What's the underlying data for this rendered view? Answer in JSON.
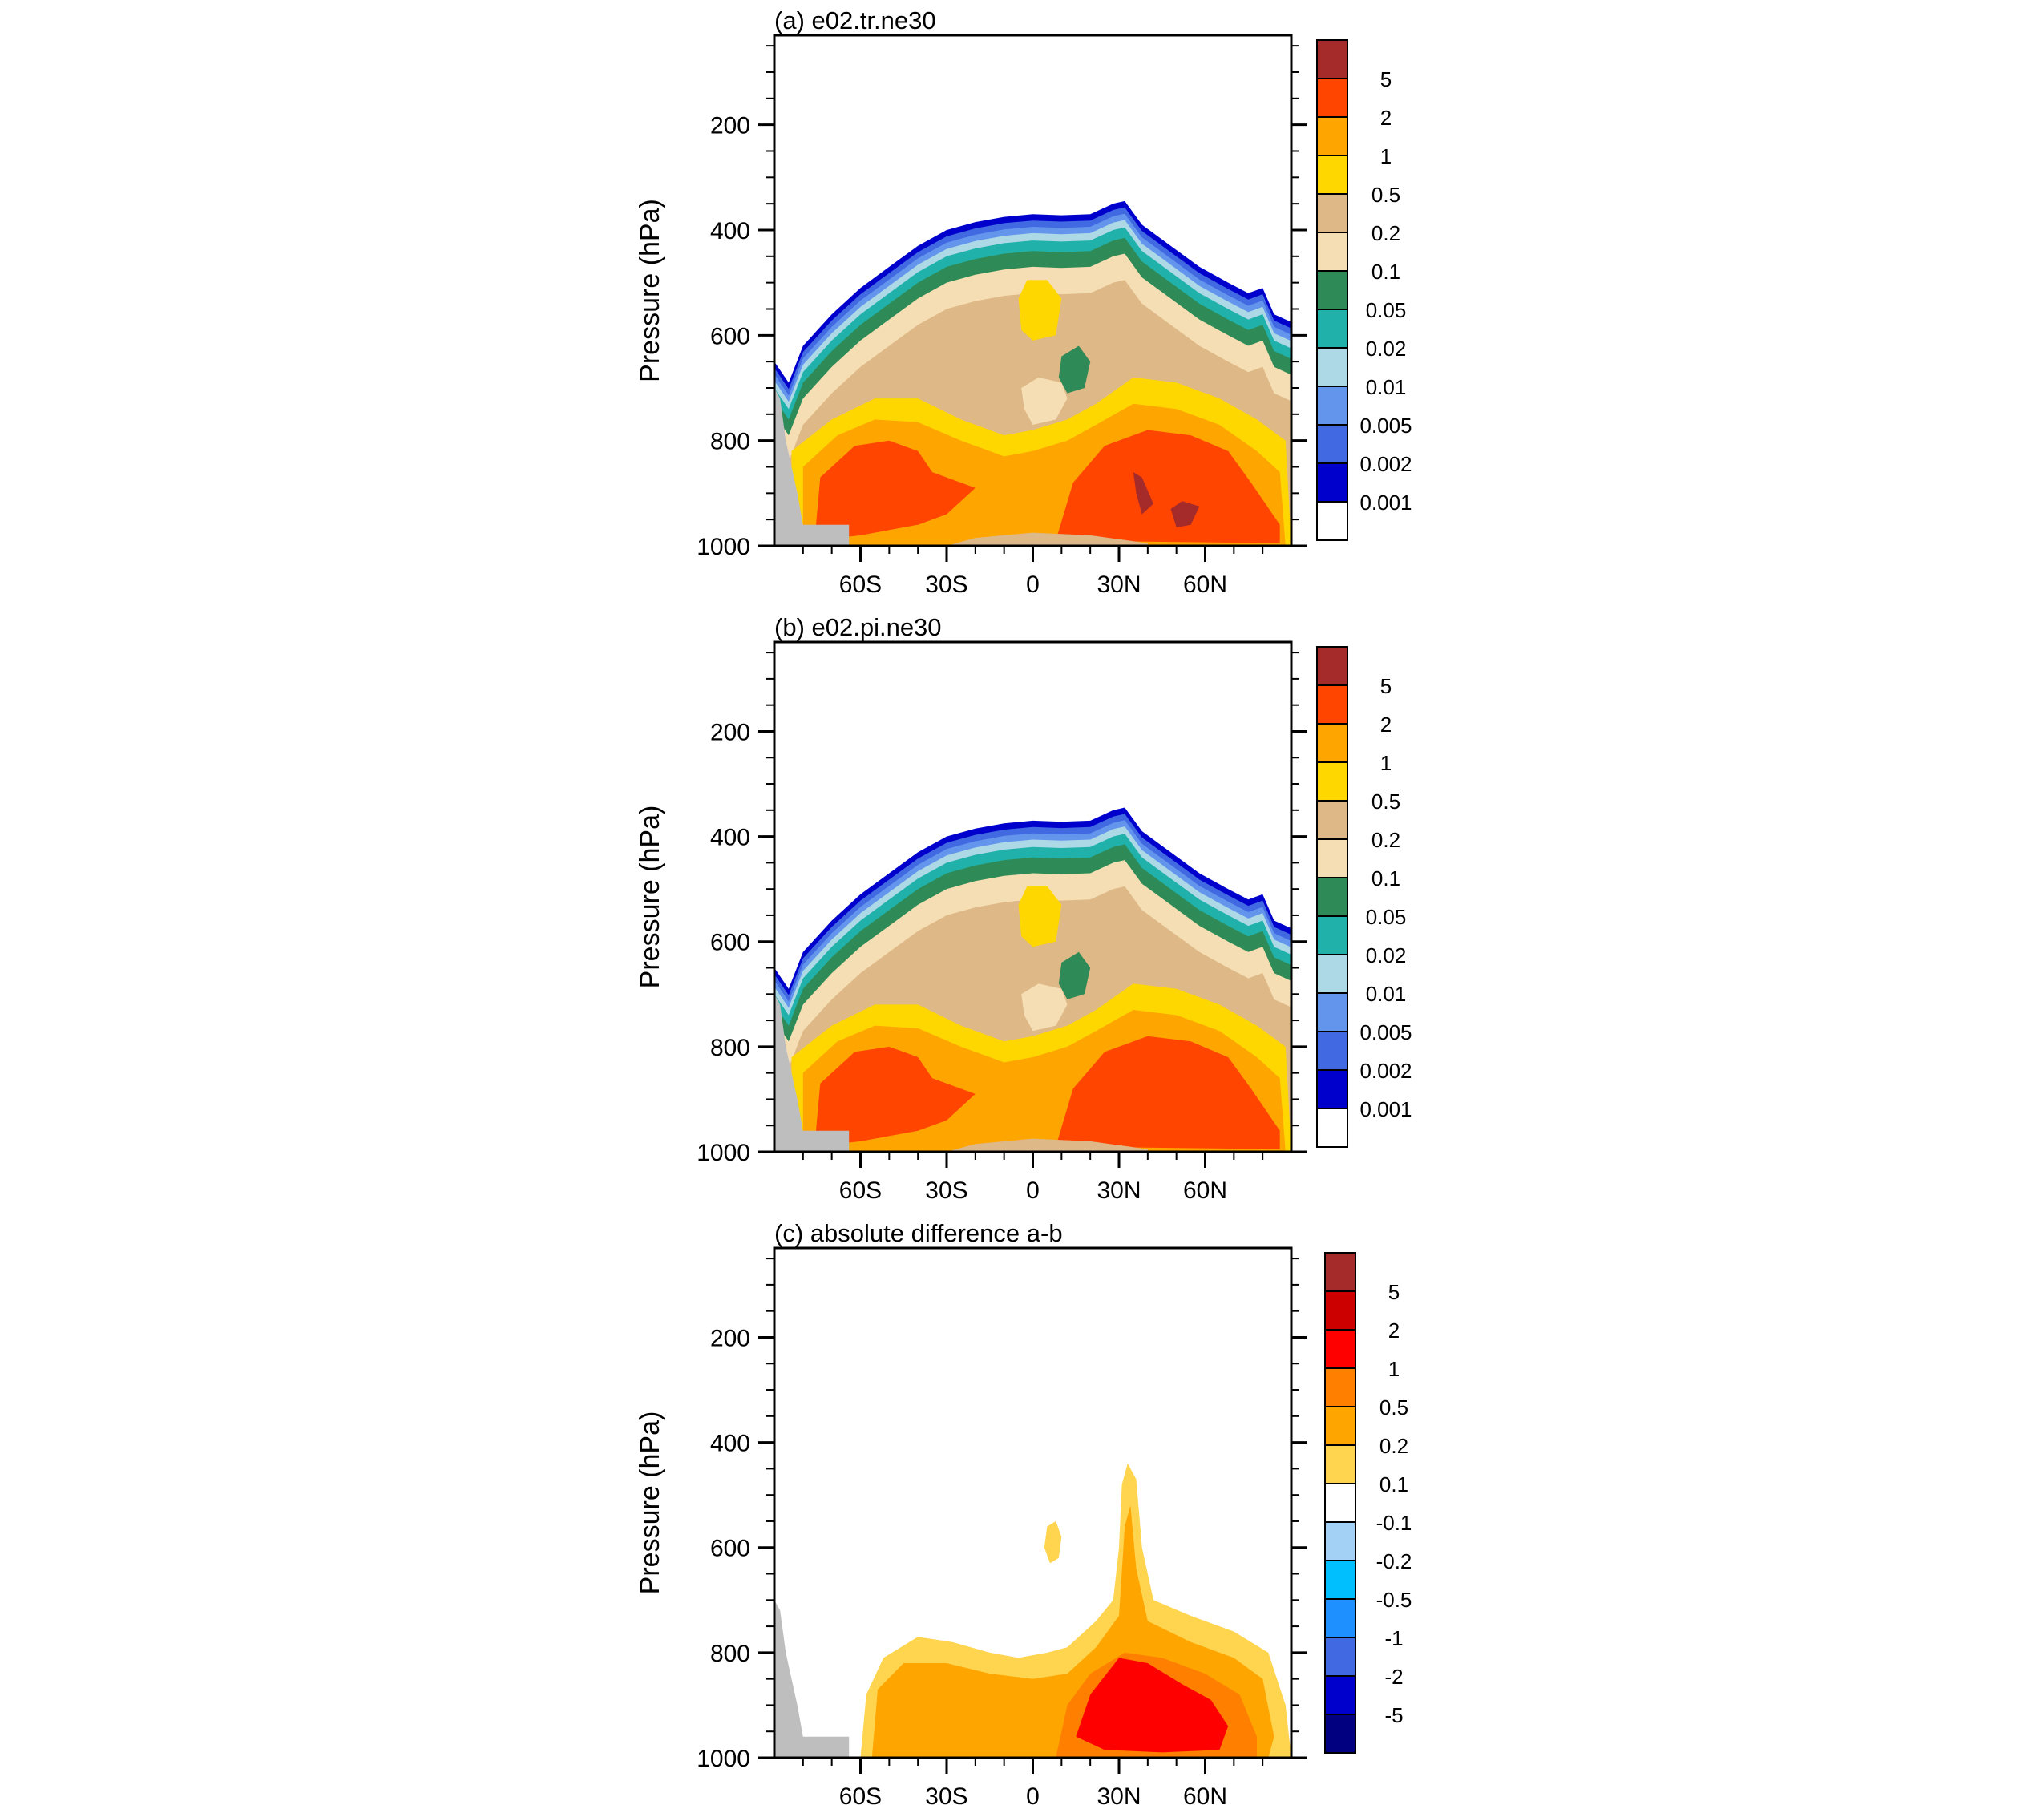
{
  "page": {
    "background": "#ffffff"
  },
  "chart_data": [
    {
      "type": "contour",
      "title": "(a) e02.tr.ne30",
      "ylabel": "Pressure (hPa)",
      "yticks": [
        "200",
        "400",
        "600",
        "800",
        "1000"
      ],
      "xticks": [
        "60S",
        "30S",
        "0",
        "30N",
        "60N"
      ],
      "xlim": [
        -90,
        90
      ],
      "ylim": [
        1000,
        30
      ],
      "colorbar": {
        "labels": [
          "5",
          "2",
          "1",
          "0.5",
          "0.2",
          "0.1",
          "0.05",
          "0.02",
          "0.01",
          "0.005",
          "0.002",
          "0.001"
        ],
        "colors": [
          "#a52a2a",
          "#ff4500",
          "#ffa500",
          "#ffd700",
          "#deb887",
          "#f5deb3",
          "#2e8b57",
          "#20b2aa",
          "#add8e6",
          "#6495ed",
          "#4169e1",
          "#0000cd",
          "#ffffff"
        ]
      }
    },
    {
      "type": "contour",
      "title": "(b) e02.pi.ne30",
      "ylabel": "Pressure (hPa)",
      "yticks": [
        "200",
        "400",
        "600",
        "800",
        "1000"
      ],
      "xticks": [
        "60S",
        "30S",
        "0",
        "30N",
        "60N"
      ],
      "xlim": [
        -90,
        90
      ],
      "ylim": [
        1000,
        30
      ],
      "colorbar": {
        "labels": [
          "5",
          "2",
          "1",
          "0.5",
          "0.2",
          "0.1",
          "0.05",
          "0.02",
          "0.01",
          "0.005",
          "0.002",
          "0.001"
        ],
        "colors": [
          "#a52a2a",
          "#ff4500",
          "#ffa500",
          "#ffd700",
          "#deb887",
          "#f5deb3",
          "#2e8b57",
          "#20b2aa",
          "#add8e6",
          "#6495ed",
          "#4169e1",
          "#0000cd",
          "#ffffff"
        ]
      }
    },
    {
      "type": "contour",
      "title": "(c) absolute difference a-b",
      "ylabel": "Pressure (hPa)",
      "yticks": [
        "200",
        "400",
        "600",
        "800",
        "1000"
      ],
      "xticks": [
        "60S",
        "30S",
        "0",
        "30N",
        "60N"
      ],
      "xlim": [
        -90,
        90
      ],
      "ylim": [
        1000,
        30
      ],
      "colorbar": {
        "labels": [
          "5",
          "2",
          "1",
          "0.5",
          "0.2",
          "0.1",
          "-0.1",
          "-0.2",
          "-0.5",
          "-1",
          "-2",
          "-5"
        ],
        "colors": [
          "#a52a2a",
          "#cd0000",
          "#ff0000",
          "#ff7f00",
          "#ffa500",
          "#ffd54f",
          "#ffffff",
          "#a3d0f5",
          "#00bfff",
          "#1e90ff",
          "#4169e1",
          "#0000cd",
          "#000080"
        ]
      }
    }
  ]
}
